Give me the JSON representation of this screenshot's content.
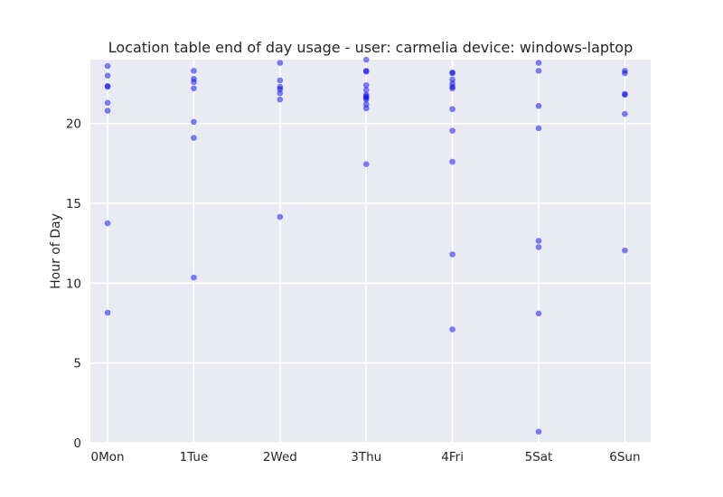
{
  "chart_data": {
    "type": "scatter",
    "title": "Location table end of day usage -  user: carmelia device: windows-laptop",
    "xlabel": "",
    "ylabel": "Hour of Day",
    "categories": [
      "0Mon",
      "1Tue",
      "2Wed",
      "3Thu",
      "4Fri",
      "5Sat",
      "6Sun"
    ],
    "xlim": [
      -0.2,
      6.3
    ],
    "ylim": [
      0,
      24
    ],
    "yticks": [
      0,
      5,
      10,
      15,
      20
    ],
    "grid": true,
    "colors": {
      "background": "#eaeaf2",
      "grid": "#ffffff",
      "point": "#0000ee"
    },
    "points": [
      {
        "x": 0,
        "y": 23.6
      },
      {
        "x": 0,
        "y": 23.0
      },
      {
        "x": 0,
        "y": 22.35
      },
      {
        "x": 0,
        "y": 22.3
      },
      {
        "x": 0,
        "y": 21.3
      },
      {
        "x": 0,
        "y": 20.8
      },
      {
        "x": 0,
        "y": 13.75
      },
      {
        "x": 0,
        "y": 8.15
      },
      {
        "x": 1,
        "y": 23.3
      },
      {
        "x": 1,
        "y": 22.8
      },
      {
        "x": 1,
        "y": 22.6
      },
      {
        "x": 1,
        "y": 22.2
      },
      {
        "x": 1,
        "y": 20.1
      },
      {
        "x": 1,
        "y": 19.1
      },
      {
        "x": 1,
        "y": 10.35
      },
      {
        "x": 2,
        "y": 23.8
      },
      {
        "x": 2,
        "y": 22.7
      },
      {
        "x": 2,
        "y": 22.3
      },
      {
        "x": 2,
        "y": 22.15
      },
      {
        "x": 2,
        "y": 21.9
      },
      {
        "x": 2,
        "y": 21.5
      },
      {
        "x": 2,
        "y": 14.15
      },
      {
        "x": 3,
        "y": 24.0
      },
      {
        "x": 3,
        "y": 23.3
      },
      {
        "x": 3,
        "y": 23.25
      },
      {
        "x": 3,
        "y": 22.4
      },
      {
        "x": 3,
        "y": 22.1
      },
      {
        "x": 3,
        "y": 21.8
      },
      {
        "x": 3,
        "y": 21.7
      },
      {
        "x": 3,
        "y": 21.6
      },
      {
        "x": 3,
        "y": 21.5
      },
      {
        "x": 3,
        "y": 21.2
      },
      {
        "x": 3,
        "y": 20.95
      },
      {
        "x": 3,
        "y": 17.45
      },
      {
        "x": 4,
        "y": 23.2
      },
      {
        "x": 4,
        "y": 23.15
      },
      {
        "x": 4,
        "y": 22.75
      },
      {
        "x": 4,
        "y": 22.5
      },
      {
        "x": 4,
        "y": 22.3
      },
      {
        "x": 4,
        "y": 22.2
      },
      {
        "x": 4,
        "y": 20.9
      },
      {
        "x": 4,
        "y": 19.55
      },
      {
        "x": 4,
        "y": 17.6
      },
      {
        "x": 4,
        "y": 11.8
      },
      {
        "x": 4,
        "y": 7.1
      },
      {
        "x": 5,
        "y": 23.8
      },
      {
        "x": 5,
        "y": 23.3
      },
      {
        "x": 5,
        "y": 21.1
      },
      {
        "x": 5,
        "y": 19.7
      },
      {
        "x": 5,
        "y": 12.65
      },
      {
        "x": 5,
        "y": 12.25
      },
      {
        "x": 5,
        "y": 8.1
      },
      {
        "x": 5,
        "y": 0.7
      },
      {
        "x": 6,
        "y": 23.3
      },
      {
        "x": 6,
        "y": 23.15
      },
      {
        "x": 6,
        "y": 21.85
      },
      {
        "x": 6,
        "y": 21.8
      },
      {
        "x": 6,
        "y": 20.6
      },
      {
        "x": 6,
        "y": 12.05
      }
    ]
  }
}
